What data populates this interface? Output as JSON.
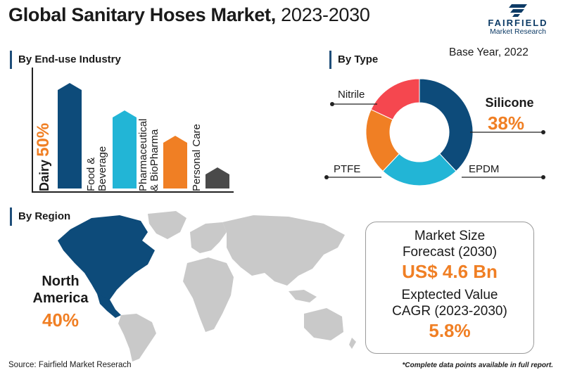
{
  "header": {
    "title_bold": "Global Sanitary Hoses Market,",
    "title_years": "2023-2030",
    "logo_name": "FAIRFIELD",
    "logo_sub": "Market Research",
    "base_year": "Base Year, 2022"
  },
  "sections": {
    "end_use": "By End-use Industry",
    "type": "By Type",
    "region": "By Region"
  },
  "chart_data": [
    {
      "type": "bar",
      "categories": [
        "Dairy",
        "Food & Beverage",
        "Pharmaceutical & BioPharma",
        "Personal Care"
      ],
      "values": [
        50,
        37,
        25,
        10
      ],
      "annotations": {
        "Dairy": "50%"
      },
      "colors": [
        "#0d4b7a",
        "#22b5d6",
        "#f07f24",
        "#4a4a4a"
      ]
    },
    {
      "type": "pie",
      "labels": [
        "Silicone",
        "EPDM",
        "PTFE",
        "Nitrile"
      ],
      "values": [
        38,
        24,
        20,
        18
      ],
      "annotations": {
        "Silicone": "38%"
      },
      "colors": [
        "#0d4b7a",
        "#22b5d6",
        "#f07f24",
        "#f5474f"
      ]
    }
  ],
  "bar_labels": {
    "dairy": "Dairy",
    "dairy_pct": "50%",
    "food_line1": "Food &",
    "food_line2": "Beverage",
    "pharma_line1": "Pharmaceutical",
    "pharma_line2": "& BioPharma",
    "personal": "Personal Care"
  },
  "pie_labels": {
    "nitrile": "Nitrile",
    "silicone": "Silicone",
    "silicone_pct": "38%",
    "ptfe": "PTFE",
    "epdm": "EPDM"
  },
  "region": {
    "name_line1": "North",
    "name_line2": "America",
    "pct": "40%",
    "highlight_color": "#0d4b7a",
    "other_color": "#c9c9c9"
  },
  "stats": {
    "size_label_line1": "Market Size",
    "size_label_line2": "Forecast (2030)",
    "size_value": "US$ 4.6 Bn",
    "cagr_label_line1": "Exptected Value",
    "cagr_label_line2": "CAGR (2023-2030)",
    "cagr_value": "5.8%"
  },
  "footer": {
    "source": "Source: Fairfield Market Reserach",
    "note": "*Complete data points available in full report."
  }
}
